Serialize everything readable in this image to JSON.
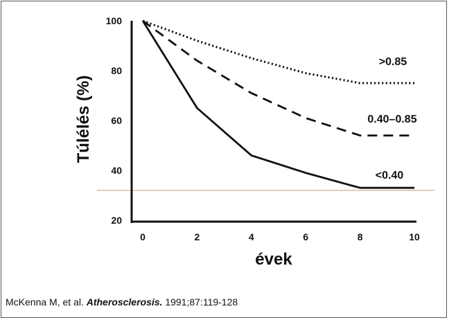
{
  "chart_data": {
    "type": "line",
    "xlabel": "évek",
    "ylabel": "Túlélés (%)",
    "x_ticks": [
      "0",
      "2",
      "4",
      "6",
      "8",
      "10"
    ],
    "y_ticks": [
      "20",
      "40",
      "60",
      "80",
      "100"
    ],
    "xlim": [
      0,
      10
    ],
    "ylim": [
      20,
      100
    ],
    "grid": false,
    "reference_line": {
      "y": 32,
      "color": "#d9a089"
    },
    "series": [
      {
        "name": ">0.85",
        "style": "dotted",
        "x": [
          0,
          2,
          4,
          6,
          8,
          10
        ],
        "y": [
          100,
          92,
          85,
          79,
          75,
          75
        ]
      },
      {
        "name": "0.40–0.85",
        "style": "dashed",
        "x": [
          0,
          2,
          4,
          6,
          8,
          10
        ],
        "y": [
          100,
          84,
          71,
          61,
          54,
          54
        ]
      },
      {
        "name": "<0.40",
        "style": "solid",
        "x": [
          0,
          2,
          4,
          6,
          8,
          10
        ],
        "y": [
          100,
          65,
          46,
          39,
          33,
          33
        ]
      }
    ]
  },
  "citation": {
    "authors": "McKenna M, et al. ",
    "journal": "Atherosclerosis.",
    "details": " 1991;87:119-128"
  }
}
